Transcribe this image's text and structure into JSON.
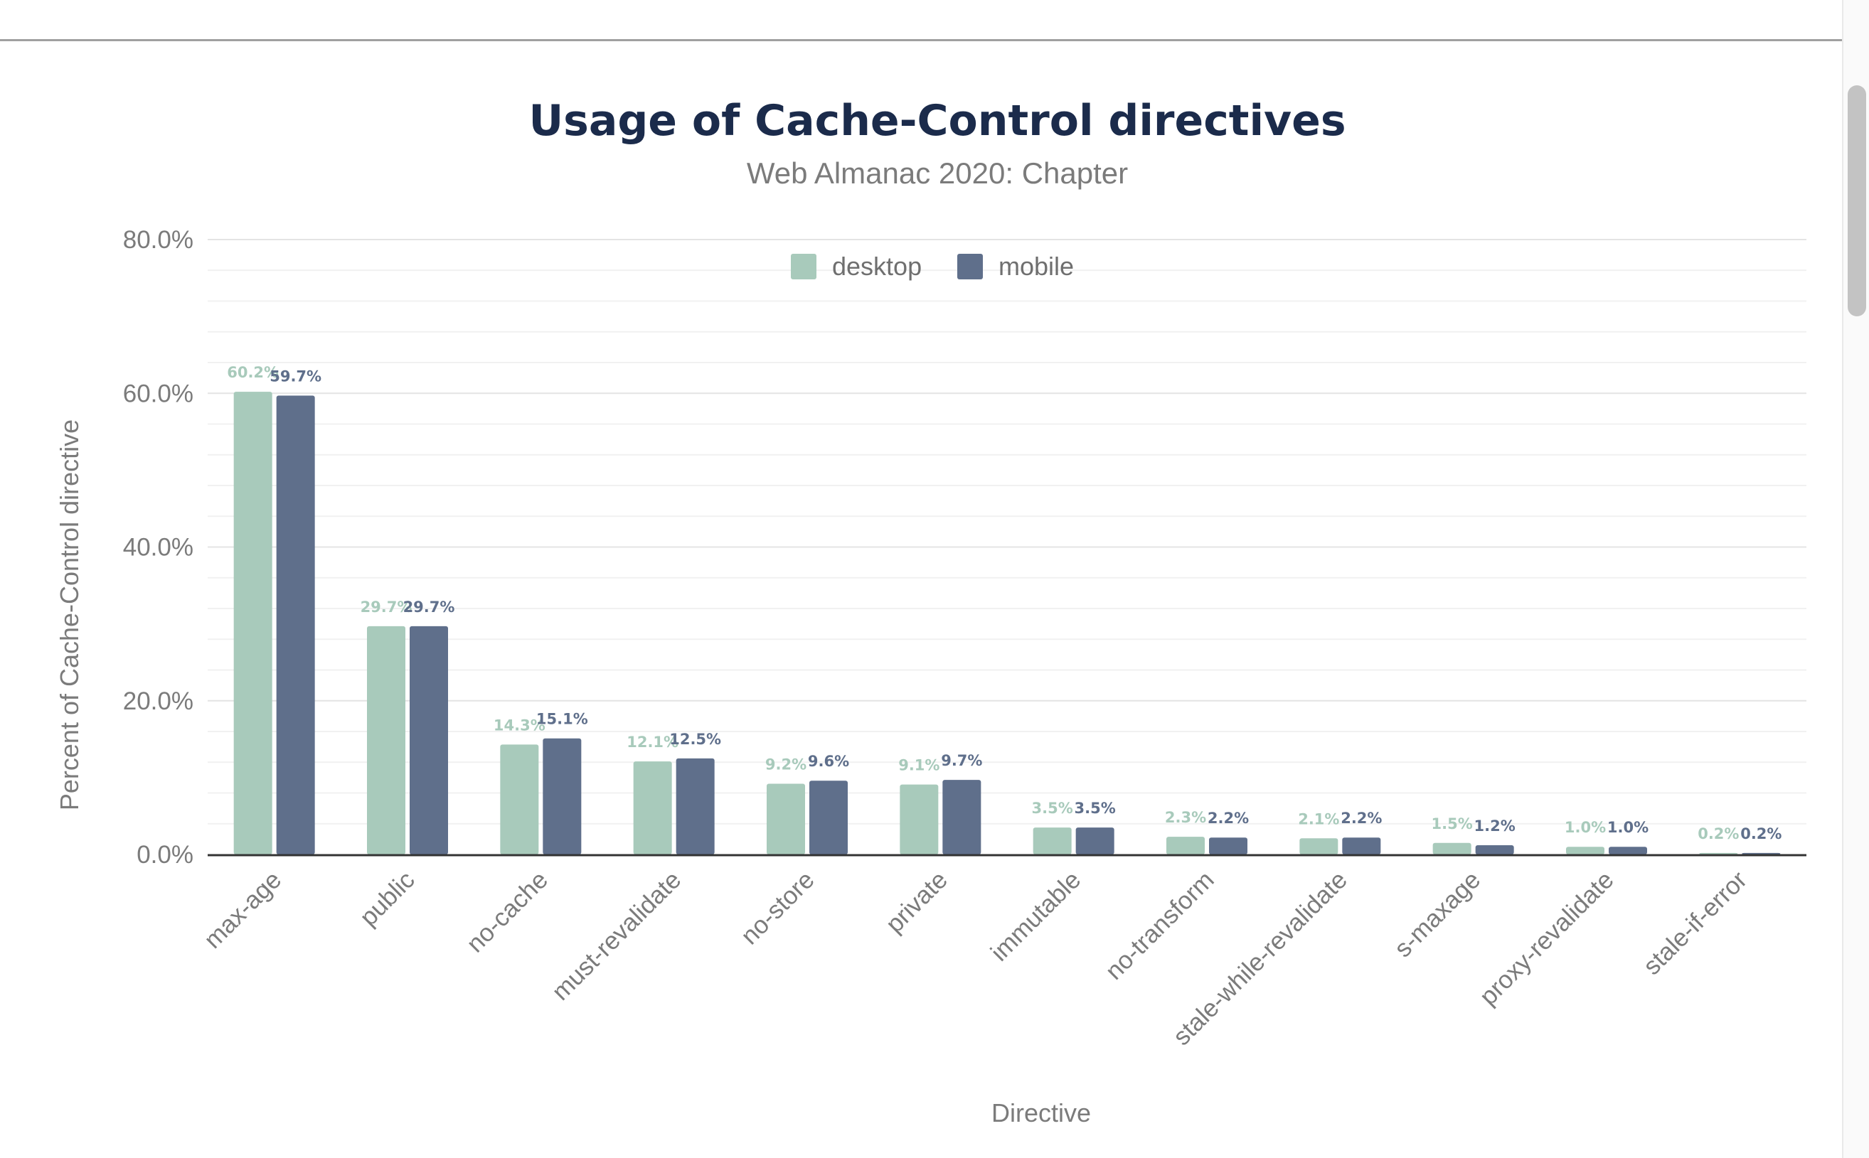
{
  "chart_data": {
    "type": "bar",
    "title": "Usage of Cache-Control directives",
    "subtitle": "Web Almanac 2020: Chapter",
    "xlabel": "Directive",
    "ylabel": "Percent of Cache-Control directive",
    "ylim": [
      0,
      80
    ],
    "yticks": [
      "0.0%",
      "20.0%",
      "40.0%",
      "60.0%",
      "80.0%"
    ],
    "grid": true,
    "legend_position": "top-center",
    "categories": [
      "max-age",
      "public",
      "no-cache",
      "must-revalidate",
      "no-store",
      "private",
      "immutable",
      "no-transform",
      "stale-while-revalidate",
      "s-maxage",
      "proxy-revalidate",
      "stale-if-error"
    ],
    "series": [
      {
        "name": "desktop",
        "color": "#a8cabb",
        "values": [
          60.2,
          29.7,
          14.3,
          12.1,
          9.2,
          9.1,
          3.5,
          2.3,
          2.1,
          1.5,
          1.0,
          0.2
        ],
        "labels": [
          "60.2%",
          "29.7%",
          "14.3%",
          "12.1%",
          "9.2%",
          "9.1%",
          "3.5%",
          "2.3%",
          "2.1%",
          "1.5%",
          "1.0%",
          "0.2%"
        ]
      },
      {
        "name": "mobile",
        "color": "#5f6f8b",
        "values": [
          59.7,
          29.7,
          15.1,
          12.5,
          9.6,
          9.7,
          3.5,
          2.2,
          2.2,
          1.2,
          1.0,
          0.2
        ],
        "labels": [
          "59.7%",
          "29.7%",
          "15.1%",
          "12.5%",
          "9.6%",
          "9.7%",
          "3.5%",
          "2.2%",
          "2.2%",
          "1.2%",
          "1.0%",
          "0.2%"
        ]
      }
    ]
  }
}
